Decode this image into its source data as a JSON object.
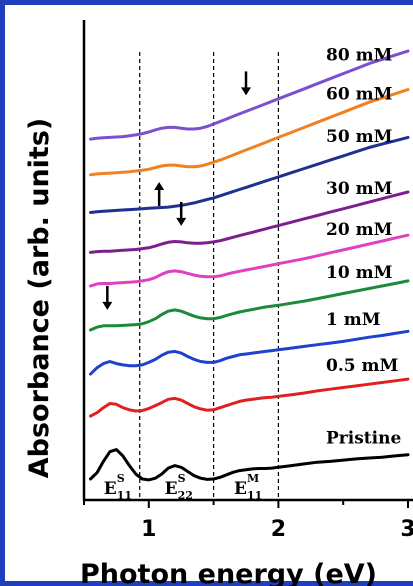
{
  "chart_data": {
    "type": "line",
    "xlabel": "Photon energy (eV)",
    "ylabel": "Absorbance (arb. units)",
    "xlim": [
      0.5,
      3.0
    ],
    "x_ticks": [
      1,
      2,
      3
    ],
    "y_ticks_shown": false,
    "grid": false,
    "legend": "labels placed on right next to each curve",
    "vertical_dashed_lines_x": [
      0.93,
      1.5,
      2.0
    ],
    "regions": [
      {
        "main": "E",
        "sup": "S",
        "sub": "11"
      },
      {
        "main": "E",
        "sup": "S",
        "sub": "22"
      },
      {
        "main": "E",
        "sup": "M",
        "sub": "11"
      }
    ],
    "x": [
      0.55,
      0.6,
      0.65,
      0.7,
      0.75,
      0.8,
      0.85,
      0.9,
      0.95,
      1.0,
      1.05,
      1.1,
      1.15,
      1.2,
      1.25,
      1.3,
      1.35,
      1.4,
      1.45,
      1.5,
      1.55,
      1.6,
      1.65,
      1.7,
      1.75,
      1.8,
      1.85,
      1.9,
      1.95,
      2.0,
      2.1,
      2.2,
      2.3,
      2.4,
      2.5,
      2.6,
      2.7,
      2.8,
      2.9,
      3.0
    ],
    "series": [
      {
        "name": "Pristine",
        "color": "#000000",
        "values": [
          0.3,
          0.45,
          0.72,
          0.95,
          1.0,
          0.85,
          0.62,
          0.42,
          0.3,
          0.28,
          0.32,
          0.42,
          0.56,
          0.62,
          0.58,
          0.48,
          0.38,
          0.32,
          0.29,
          0.3,
          0.34,
          0.4,
          0.46,
          0.5,
          0.52,
          0.54,
          0.55,
          0.55,
          0.56,
          0.58,
          0.62,
          0.66,
          0.7,
          0.72,
          0.75,
          0.78,
          0.8,
          0.82,
          0.85,
          0.88
        ]
      },
      {
        "name": "0.5 mM",
        "color": "#e02020",
        "values": [
          1.8,
          1.88,
          2.0,
          2.1,
          2.08,
          2.0,
          1.95,
          1.92,
          1.93,
          1.98,
          2.05,
          2.12,
          2.2,
          2.22,
          2.18,
          2.1,
          2.02,
          1.97,
          1.94,
          1.95,
          2.0,
          2.05,
          2.1,
          2.15,
          2.18,
          2.2,
          2.22,
          2.24,
          2.25,
          2.27,
          2.31,
          2.35,
          2.4,
          2.44,
          2.48,
          2.52,
          2.56,
          2.6,
          2.64,
          2.68
        ]
      },
      {
        "name": "1 mM",
        "color": "#2040d0",
        "values": [
          2.8,
          2.95,
          3.05,
          3.1,
          3.05,
          3.02,
          3.0,
          3.0,
          3.02,
          3.08,
          3.15,
          3.25,
          3.32,
          3.34,
          3.3,
          3.22,
          3.15,
          3.1,
          3.08,
          3.08,
          3.12,
          3.18,
          3.22,
          3.26,
          3.28,
          3.3,
          3.32,
          3.34,
          3.36,
          3.38,
          3.42,
          3.46,
          3.5,
          3.54,
          3.58,
          3.63,
          3.68,
          3.72,
          3.77,
          3.82
        ]
      },
      {
        "name": "10 mM",
        "color": "#1b8a3a",
        "values": [
          3.85,
          3.92,
          3.95,
          3.95,
          3.95,
          3.96,
          3.97,
          3.98,
          4.0,
          4.05,
          4.12,
          4.22,
          4.3,
          4.33,
          4.3,
          4.24,
          4.18,
          4.14,
          4.12,
          4.12,
          4.15,
          4.2,
          4.24,
          4.28,
          4.31,
          4.34,
          4.37,
          4.4,
          4.42,
          4.44,
          4.49,
          4.54,
          4.6,
          4.66,
          4.72,
          4.78,
          4.84,
          4.9,
          4.96,
          5.02
        ]
      },
      {
        "name": "20 mM",
        "color": "#e040c0",
        "values": [
          4.9,
          4.95,
          4.96,
          4.96,
          4.97,
          4.98,
          4.99,
          5.0,
          5.02,
          5.05,
          5.1,
          5.18,
          5.24,
          5.26,
          5.24,
          5.2,
          5.16,
          5.13,
          5.12,
          5.12,
          5.14,
          5.18,
          5.22,
          5.25,
          5.28,
          5.31,
          5.34,
          5.37,
          5.4,
          5.43,
          5.49,
          5.55,
          5.62,
          5.69,
          5.76,
          5.83,
          5.9,
          5.97,
          6.04,
          6.11
        ]
      },
      {
        "name": "30 mM",
        "color": "#7b1f8f",
        "values": [
          5.7,
          5.72,
          5.73,
          5.73,
          5.74,
          5.75,
          5.76,
          5.77,
          5.79,
          5.81,
          5.85,
          5.9,
          5.94,
          5.96,
          5.95,
          5.93,
          5.92,
          5.92,
          5.93,
          5.95,
          5.98,
          6.02,
          6.06,
          6.1,
          6.14,
          6.18,
          6.22,
          6.26,
          6.3,
          6.34,
          6.42,
          6.5,
          6.58,
          6.66,
          6.74,
          6.82,
          6.9,
          6.98,
          7.06,
          7.14
        ]
      },
      {
        "name": "50 mM",
        "color": "#1f3090",
        "values": [
          6.65,
          6.67,
          6.68,
          6.69,
          6.7,
          6.71,
          6.72,
          6.73,
          6.74,
          6.75,
          6.76,
          6.77,
          6.78,
          6.8,
          6.82,
          6.85,
          6.88,
          6.92,
          6.96,
          7.0,
          7.05,
          7.1,
          7.15,
          7.2,
          7.25,
          7.3,
          7.35,
          7.4,
          7.45,
          7.5,
          7.6,
          7.7,
          7.8,
          7.9,
          8.0,
          8.1,
          8.2,
          8.28,
          8.36,
          8.44
        ]
      },
      {
        "name": "60 mM",
        "color": "#f08020",
        "values": [
          7.55,
          7.57,
          7.58,
          7.59,
          7.6,
          7.61,
          7.62,
          7.64,
          7.66,
          7.68,
          7.72,
          7.76,
          7.78,
          7.78,
          7.76,
          7.74,
          7.74,
          7.76,
          7.8,
          7.85,
          7.9,
          7.96,
          8.02,
          8.08,
          8.14,
          8.2,
          8.26,
          8.32,
          8.38,
          8.44,
          8.56,
          8.68,
          8.8,
          8.92,
          9.04,
          9.16,
          9.28,
          9.38,
          9.48,
          9.58
        ]
      },
      {
        "name": "80 mM",
        "color": "#7a4fd0",
        "values": [
          8.4,
          8.42,
          8.43,
          8.44,
          8.45,
          8.46,
          8.48,
          8.5,
          8.53,
          8.57,
          8.62,
          8.66,
          8.68,
          8.68,
          8.66,
          8.64,
          8.64,
          8.66,
          8.7,
          8.76,
          8.82,
          8.88,
          8.94,
          9.0,
          9.06,
          9.12,
          9.18,
          9.24,
          9.3,
          9.36,
          9.48,
          9.6,
          9.72,
          9.84,
          9.96,
          10.08,
          10.2,
          10.3,
          10.4,
          10.5
        ]
      }
    ],
    "annotations": [
      {
        "type": "arrow-down",
        "near_series": "10 mM",
        "x": 0.68
      },
      {
        "type": "arrow-down",
        "near_series": "30 mM",
        "x": 1.25
      },
      {
        "type": "arrow-up",
        "near_series": "60 mM",
        "x": 1.08
      },
      {
        "type": "arrow-down",
        "near_series": "80 mM",
        "x": 1.75
      }
    ]
  }
}
